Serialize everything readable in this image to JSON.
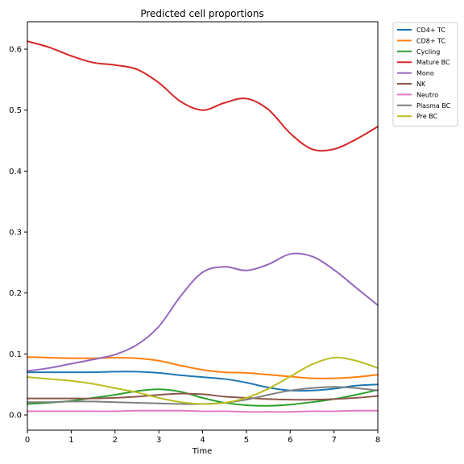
{
  "chart_data": {
    "type": "line",
    "title": "Predicted cell proportions",
    "xlabel": "Time",
    "ylabel": "",
    "xlim": [
      0,
      8
    ],
    "ylim": [
      -0.025,
      0.645
    ],
    "xticks": [
      0,
      1,
      2,
      3,
      4,
      5,
      6,
      7,
      8
    ],
    "yticks": [
      0.0,
      0.1,
      0.2,
      0.3,
      0.4,
      0.5,
      0.6
    ],
    "ytick_labels": [
      "0.0",
      "0.1",
      "0.2",
      "0.3",
      "0.4",
      "0.5",
      "0.6"
    ],
    "grid": false,
    "legend_position": "outside-top-right",
    "x": [
      0,
      0.5,
      1,
      1.5,
      2,
      2.5,
      3,
      3.5,
      4,
      4.5,
      5,
      5.5,
      6,
      6.5,
      7,
      7.5,
      8
    ],
    "series": [
      {
        "name": "CD4+ TC",
        "color": "#1f77b4",
        "values": [
          0.07,
          0.07,
          0.07,
          0.07,
          0.071,
          0.071,
          0.069,
          0.065,
          0.062,
          0.059,
          0.053,
          0.045,
          0.04,
          0.04,
          0.043,
          0.048,
          0.05
        ]
      },
      {
        "name": "CD8+ TC",
        "color": "#ff7f0e",
        "values": [
          0.095,
          0.094,
          0.093,
          0.093,
          0.094,
          0.093,
          0.089,
          0.081,
          0.074,
          0.07,
          0.069,
          0.066,
          0.063,
          0.06,
          0.06,
          0.062,
          0.066
        ]
      },
      {
        "name": "Cycling",
        "color": "#2ca02c",
        "values": [
          0.018,
          0.02,
          0.023,
          0.028,
          0.033,
          0.039,
          0.042,
          0.038,
          0.028,
          0.02,
          0.016,
          0.015,
          0.017,
          0.021,
          0.026,
          0.033,
          0.041
        ]
      },
      {
        "name": "Mature BC",
        "color": "#d62728",
        "values": [
          0.613,
          0.603,
          0.589,
          0.578,
          0.574,
          0.567,
          0.545,
          0.514,
          0.5,
          0.512,
          0.519,
          0.501,
          0.462,
          0.436,
          0.436,
          0.452,
          0.473
        ]
      },
      {
        "name": "Mono",
        "color": "#9467bd",
        "values": [
          0.072,
          0.077,
          0.084,
          0.091,
          0.099,
          0.115,
          0.145,
          0.195,
          0.234,
          0.243,
          0.237,
          0.247,
          0.264,
          0.26,
          0.238,
          0.209,
          0.18
        ]
      },
      {
        "name": "NK",
        "color": "#8c564b",
        "values": [
          0.027,
          0.027,
          0.027,
          0.027,
          0.028,
          0.03,
          0.033,
          0.035,
          0.034,
          0.03,
          0.028,
          0.026,
          0.025,
          0.025,
          0.026,
          0.028,
          0.031
        ]
      },
      {
        "name": "Neutro",
        "color": "#e377c2",
        "values": [
          0.006,
          0.006,
          0.006,
          0.006,
          0.006,
          0.007,
          0.007,
          0.007,
          0.006,
          0.006,
          0.005,
          0.005,
          0.005,
          0.006,
          0.006,
          0.007,
          0.007
        ]
      },
      {
        "name": "Plasma BC",
        "color": "#7f7f7f",
        "values": [
          0.021,
          0.021,
          0.022,
          0.022,
          0.021,
          0.02,
          0.019,
          0.018,
          0.018,
          0.02,
          0.025,
          0.033,
          0.04,
          0.044,
          0.046,
          0.044,
          0.04
        ]
      },
      {
        "name": "Pre BC",
        "color": "#bcbd22",
        "values": [
          0.062,
          0.059,
          0.056,
          0.051,
          0.044,
          0.037,
          0.028,
          0.021,
          0.018,
          0.02,
          0.028,
          0.043,
          0.063,
          0.083,
          0.094,
          0.089,
          0.077
        ]
      }
    ]
  }
}
